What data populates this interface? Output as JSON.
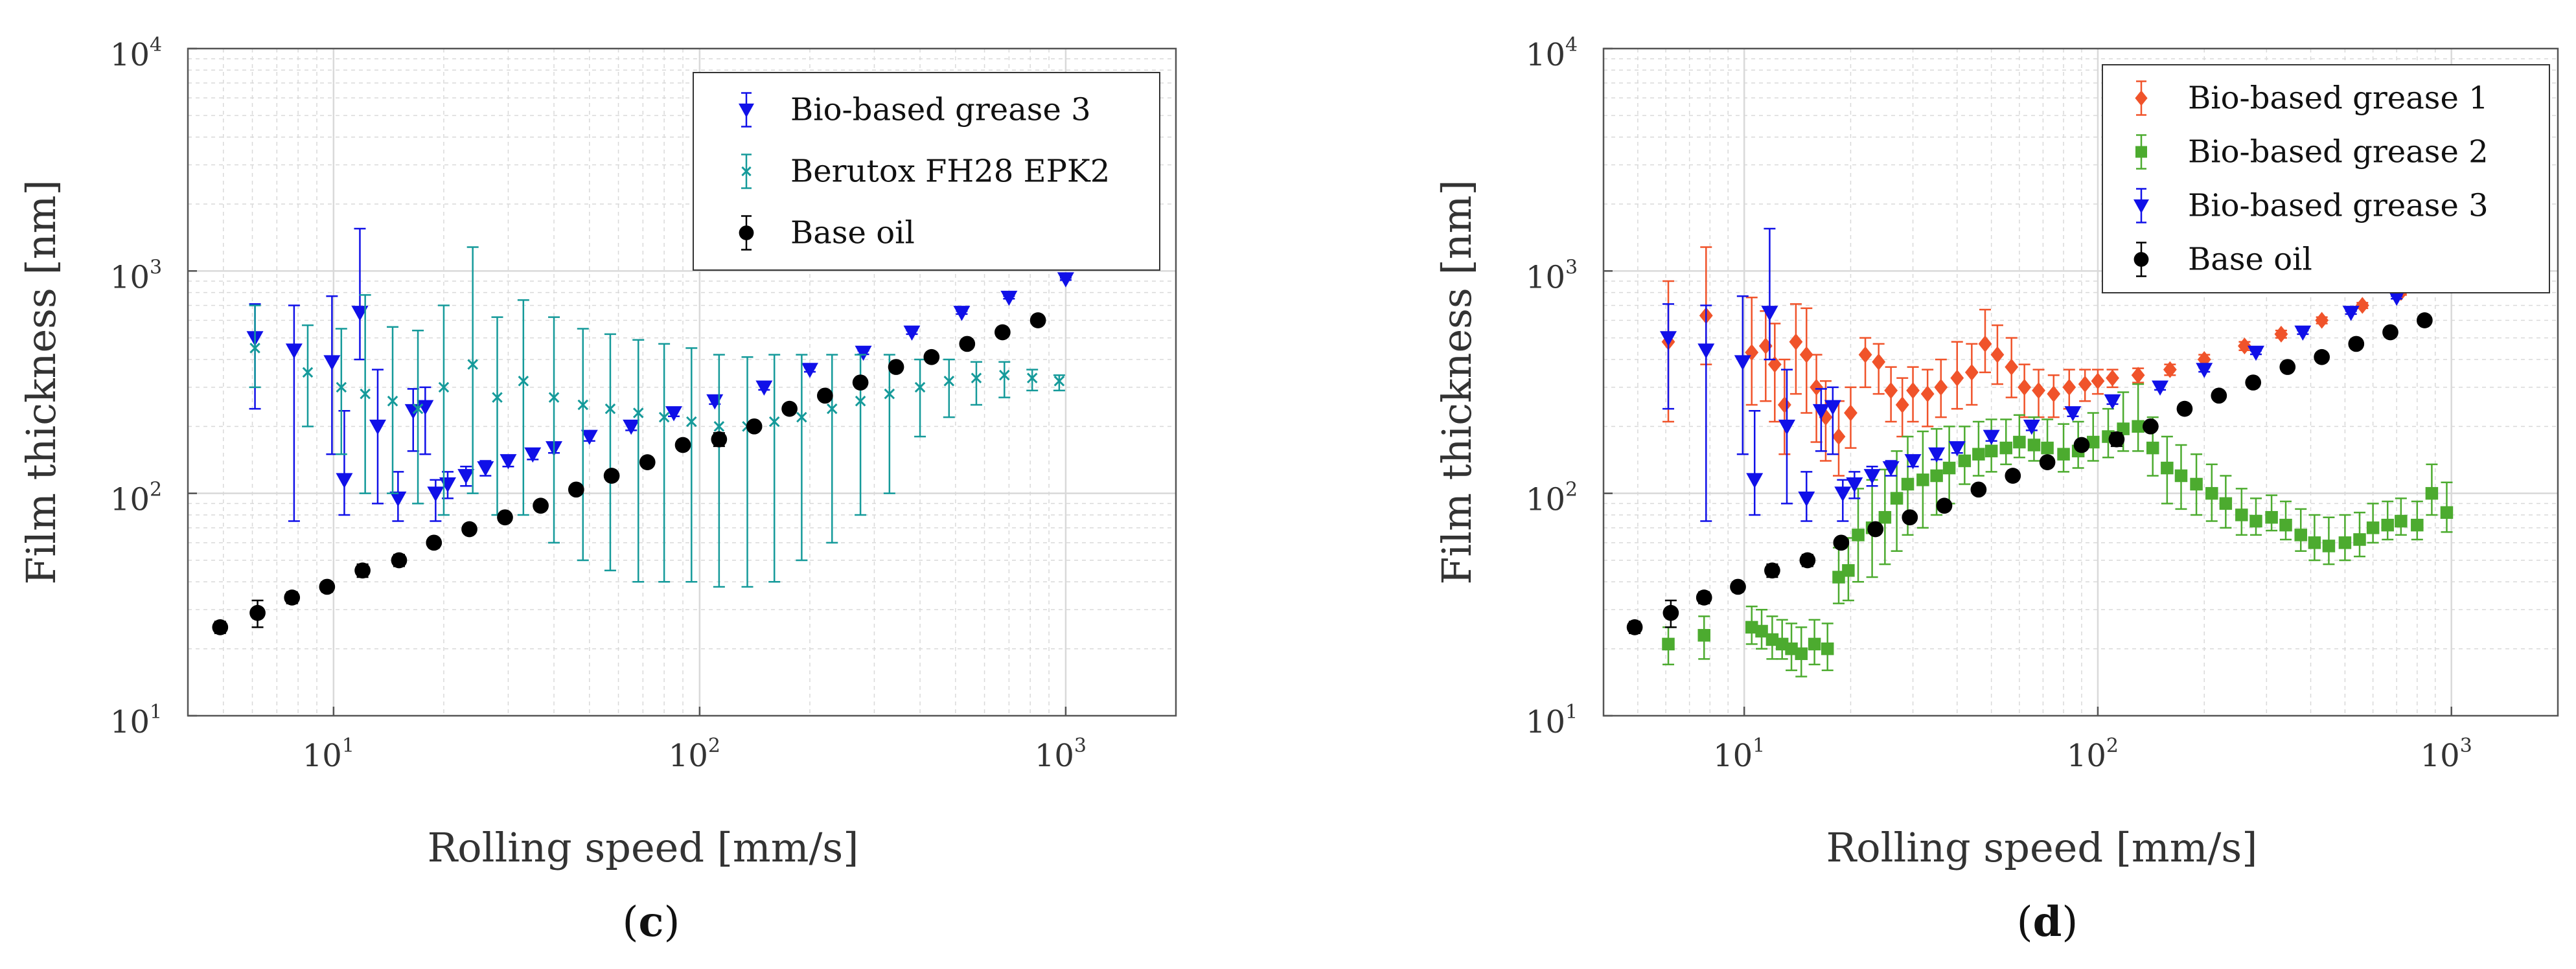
{
  "colors": {
    "grease1": "#f0532a",
    "grease2": "#4cab2f",
    "grease3": "#1010e8",
    "berutox": "#159a9a",
    "base_oil": "#000000",
    "grid": "#d9d9d9",
    "frame": "#555555"
  },
  "chart_data": [
    {
      "type": "scatter",
      "panel_label": {
        "open": "(",
        "letter": "c",
        "close": ")"
      },
      "xlabel": "Rolling speed [mm/s]",
      "ylabel": "Film thickness [nm]",
      "xscale": "log",
      "yscale": "log",
      "xlim": [
        4,
        2000
      ],
      "ylim": [
        10,
        10000
      ],
      "x_ticks": [
        {
          "base": "10",
          "exp": "1",
          "value": 10
        },
        {
          "base": "10",
          "exp": "2",
          "value": 100
        },
        {
          "base": "10",
          "exp": "3",
          "value": 1000
        }
      ],
      "y_ticks": [
        {
          "base": "10",
          "exp": "1",
          "value": 10
        },
        {
          "base": "10",
          "exp": "2",
          "value": 100
        },
        {
          "base": "10",
          "exp": "3",
          "value": 1000
        },
        {
          "base": "10",
          "exp": "4",
          "value": 10000
        }
      ],
      "grid": true,
      "legend_position": "top-right",
      "series": [
        {
          "name": "Bio-based grease 3",
          "color_key": "grease3",
          "marker": "triangle-down",
          "x": [
            6.1,
            7.8,
            9.9,
            10.7,
            11.8,
            13.2,
            15.0,
            16.5,
            17.8,
            19.0,
            20.5,
            23,
            26,
            30,
            35,
            40,
            50,
            65,
            85,
            110,
            150,
            200,
            280,
            380,
            520,
            700,
            1000
          ],
          "y": [
            500,
            440,
            390,
            115,
            650,
            200,
            95,
            235,
            245,
            100,
            110,
            120,
            130,
            140,
            150,
            160,
            180,
            200,
            230,
            260,
            300,
            360,
            430,
            530,
            650,
            760,
            920
          ],
          "err_low": [
            260,
            365,
            240,
            35,
            250,
            110,
            20,
            80,
            95,
            25,
            15,
            12,
            10,
            8,
            8,
            8,
            8,
            8,
            8,
            8,
            8,
            8,
            8,
            10,
            10,
            10,
            10
          ],
          "err_high": [
            210,
            260,
            380,
            120,
            900,
            160,
            30,
            60,
            55,
            15,
            15,
            12,
            10,
            8,
            8,
            8,
            8,
            8,
            8,
            8,
            8,
            8,
            8,
            10,
            10,
            10,
            10
          ]
        },
        {
          "name": "Berutox FH28 EPK2",
          "color_key": "berutox",
          "marker": "x",
          "x": [
            6.1,
            8.5,
            10.5,
            12.2,
            14.5,
            17,
            20,
            24,
            28,
            33,
            40,
            48,
            57,
            68,
            80,
            95,
            113,
            135,
            160,
            190,
            230,
            275,
            330,
            400,
            480,
            570,
            680,
            810,
            960
          ],
          "y": [
            450,
            350,
            300,
            280,
            260,
            240,
            300,
            380,
            270,
            320,
            270,
            250,
            240,
            230,
            220,
            210,
            200,
            200,
            210,
            220,
            240,
            260,
            280,
            300,
            320,
            330,
            340,
            330,
            320
          ],
          "err_low": [
            150,
            150,
            150,
            180,
            160,
            150,
            220,
            280,
            190,
            240,
            210,
            200,
            195,
            190,
            180,
            170,
            162,
            162,
            170,
            170,
            180,
            180,
            180,
            120,
            100,
            80,
            70,
            40,
            30
          ],
          "err_high": [
            250,
            220,
            250,
            500,
            300,
            300,
            400,
            900,
            350,
            420,
            350,
            300,
            280,
            260,
            250,
            240,
            220,
            210,
            210,
            200,
            180,
            160,
            140,
            100,
            80,
            60,
            50,
            30,
            20
          ]
        },
        {
          "name": "Base oil",
          "color_key": "base_oil",
          "marker": "circle",
          "x": [
            4.9,
            6.2,
            7.7,
            9.6,
            12.0,
            15.1,
            18.8,
            23.5,
            29.4,
            36.8,
            46,
            57.5,
            72,
            90,
            113,
            141,
            176,
            220,
            275,
            344,
            430,
            538,
            672,
            840
          ],
          "y": [
            25,
            29,
            34,
            38,
            45,
            50,
            60,
            69,
            78,
            88,
            104,
            120,
            138,
            165,
            175,
            200,
            240,
            275,
            315,
            370,
            410,
            470,
            530,
            600
          ],
          "err_low": [
            1.5,
            4,
            2,
            2,
            3,
            3,
            3,
            3,
            3,
            3,
            4,
            5,
            5,
            5,
            12,
            8,
            8,
            8,
            8,
            10,
            10,
            15,
            15,
            20
          ],
          "err_high": [
            1.5,
            4,
            2,
            2,
            3,
            3,
            3,
            3,
            3,
            3,
            4,
            5,
            5,
            5,
            12,
            8,
            8,
            8,
            8,
            10,
            10,
            15,
            15,
            20
          ]
        }
      ]
    },
    {
      "type": "scatter",
      "panel_label": {
        "open": "(",
        "letter": "d",
        "close": ")"
      },
      "xlabel": "Rolling speed [mm/s]",
      "ylabel": "Film thickness [nm]",
      "xscale": "log",
      "yscale": "log",
      "xlim": [
        4,
        2000
      ],
      "ylim": [
        10,
        10000
      ],
      "x_ticks": [
        {
          "base": "10",
          "exp": "1",
          "value": 10
        },
        {
          "base": "10",
          "exp": "2",
          "value": 100
        },
        {
          "base": "10",
          "exp": "3",
          "value": 1000
        }
      ],
      "y_ticks": [
        {
          "base": "10",
          "exp": "1",
          "value": 10
        },
        {
          "base": "10",
          "exp": "2",
          "value": 100
        },
        {
          "base": "10",
          "exp": "3",
          "value": 1000
        },
        {
          "base": "10",
          "exp": "4",
          "value": 10000
        }
      ],
      "grid": true,
      "legend_position": "top-right",
      "series": [
        {
          "name": "Bio-based grease 1",
          "color_key": "grease1",
          "marker": "diamond",
          "x": [
            6.1,
            7.8,
            10.5,
            11.5,
            12.2,
            13.0,
            14.0,
            15.0,
            16.0,
            17.0,
            18.5,
            20,
            22,
            24,
            26,
            28,
            30,
            33,
            36,
            40,
            44,
            48,
            52,
            57,
            62,
            68,
            75,
            83,
            92,
            100,
            110,
            130,
            160,
            200,
            260,
            330,
            430,
            560,
            720,
            1000
          ],
          "y": [
            480,
            630,
            430,
            460,
            380,
            250,
            480,
            420,
            300,
            220,
            180,
            230,
            420,
            390,
            290,
            250,
            290,
            280,
            300,
            330,
            350,
            470,
            420,
            370,
            300,
            290,
            280,
            300,
            310,
            320,
            330,
            340,
            360,
            400,
            460,
            520,
            600,
            700,
            800,
            920
          ],
          "err_low": [
            270,
            250,
            180,
            200,
            170,
            100,
            200,
            190,
            130,
            80,
            60,
            70,
            120,
            110,
            80,
            70,
            80,
            80,
            80,
            90,
            100,
            120,
            110,
            100,
            80,
            70,
            60,
            60,
            50,
            40,
            30,
            25,
            20,
            20,
            20,
            20,
            20,
            20,
            20,
            20
          ],
          "err_high": [
            420,
            650,
            330,
            200,
            200,
            150,
            230,
            260,
            120,
            100,
            80,
            70,
            80,
            80,
            80,
            80,
            80,
            80,
            100,
            150,
            120,
            200,
            150,
            130,
            80,
            70,
            60,
            60,
            50,
            40,
            30,
            25,
            20,
            20,
            20,
            20,
            20,
            20,
            20,
            20
          ]
        },
        {
          "name": "Bio-based grease 2",
          "color_key": "grease2",
          "marker": "square",
          "x": [
            6.1,
            7.7,
            10.5,
            11.2,
            12.0,
            12.8,
            13.6,
            14.5,
            15.8,
            17.2,
            18.5,
            19.7,
            21,
            23,
            25,
            27,
            29,
            32,
            35,
            38,
            42,
            46,
            50,
            55,
            60,
            66,
            72,
            80,
            88,
            97,
            107,
            118,
            130,
            143,
            157,
            172,
            190,
            210,
            230,
            255,
            280,
            310,
            340,
            375,
            410,
            450,
            500,
            550,
            600,
            660,
            720,
            800,
            880,
            970
          ],
          "y": [
            21,
            23,
            25,
            24,
            22,
            21,
            20,
            19,
            21,
            20,
            42,
            45,
            65,
            70,
            78,
            95,
            110,
            115,
            120,
            130,
            140,
            150,
            155,
            160,
            170,
            165,
            160,
            150,
            155,
            170,
            180,
            195,
            200,
            160,
            130,
            120,
            110,
            100,
            90,
            80,
            75,
            78,
            72,
            65,
            60,
            58,
            60,
            62,
            70,
            72,
            75,
            72,
            100,
            82
          ],
          "err_low": [
            4,
            5,
            4,
            4,
            4,
            3,
            4,
            4,
            4,
            4,
            10,
            12,
            25,
            28,
            30,
            40,
            45,
            45,
            40,
            40,
            30,
            30,
            30,
            25,
            25,
            25,
            25,
            25,
            25,
            30,
            35,
            40,
            45,
            40,
            40,
            35,
            30,
            25,
            20,
            15,
            10,
            10,
            10,
            10,
            10,
            10,
            10,
            10,
            10,
            10,
            10,
            10,
            20,
            15
          ],
          "err_high": [
            4,
            5,
            6,
            6,
            6,
            6,
            6,
            6,
            6,
            6,
            15,
            18,
            40,
            45,
            50,
            60,
            70,
            75,
            75,
            70,
            60,
            60,
            60,
            55,
            55,
            55,
            55,
            55,
            55,
            60,
            60,
            90,
            110,
            60,
            50,
            45,
            40,
            35,
            30,
            25,
            20,
            20,
            20,
            20,
            20,
            20,
            20,
            20,
            20,
            20,
            20,
            20,
            35,
            30
          ]
        },
        {
          "name": "Bio-based grease 3",
          "color_key": "grease3",
          "marker": "triangle-down",
          "x": [
            6.1,
            7.8,
            9.9,
            10.7,
            11.8,
            13.2,
            15.0,
            16.5,
            17.8,
            19.0,
            20.5,
            23,
            26,
            30,
            35,
            40,
            50,
            65,
            85,
            110,
            150,
            200,
            280,
            380,
            520,
            700,
            1000
          ],
          "y": [
            500,
            440,
            390,
            115,
            650,
            200,
            95,
            235,
            245,
            100,
            110,
            120,
            130,
            140,
            150,
            160,
            180,
            200,
            230,
            260,
            300,
            360,
            430,
            530,
            650,
            760,
            920
          ],
          "err_low": [
            260,
            365,
            240,
            35,
            250,
            110,
            20,
            80,
            95,
            25,
            15,
            12,
            10,
            8,
            8,
            8,
            8,
            8,
            8,
            8,
            8,
            8,
            8,
            10,
            10,
            10,
            10
          ],
          "err_high": [
            210,
            260,
            380,
            120,
            900,
            160,
            30,
            60,
            55,
            15,
            15,
            12,
            10,
            8,
            8,
            8,
            8,
            8,
            8,
            8,
            8,
            8,
            8,
            10,
            10,
            10,
            10
          ]
        },
        {
          "name": "Base oil",
          "color_key": "base_oil",
          "marker": "circle",
          "x": [
            4.9,
            6.2,
            7.7,
            9.6,
            12.0,
            15.1,
            18.8,
            23.5,
            29.4,
            36.8,
            46,
            57.5,
            72,
            90,
            113,
            141,
            176,
            220,
            275,
            344,
            430,
            538,
            672,
            840
          ],
          "y": [
            25,
            29,
            34,
            38,
            45,
            50,
            60,
            69,
            78,
            88,
            104,
            120,
            138,
            165,
            175,
            200,
            240,
            275,
            315,
            370,
            410,
            470,
            530,
            600
          ],
          "err_low": [
            1.5,
            4,
            2,
            2,
            3,
            3,
            3,
            3,
            3,
            3,
            4,
            5,
            5,
            5,
            12,
            8,
            8,
            8,
            8,
            10,
            10,
            15,
            15,
            20
          ],
          "err_high": [
            1.5,
            4,
            2,
            2,
            3,
            3,
            3,
            3,
            3,
            3,
            4,
            5,
            5,
            5,
            12,
            8,
            8,
            8,
            8,
            10,
            10,
            15,
            15,
            20
          ]
        }
      ]
    }
  ]
}
